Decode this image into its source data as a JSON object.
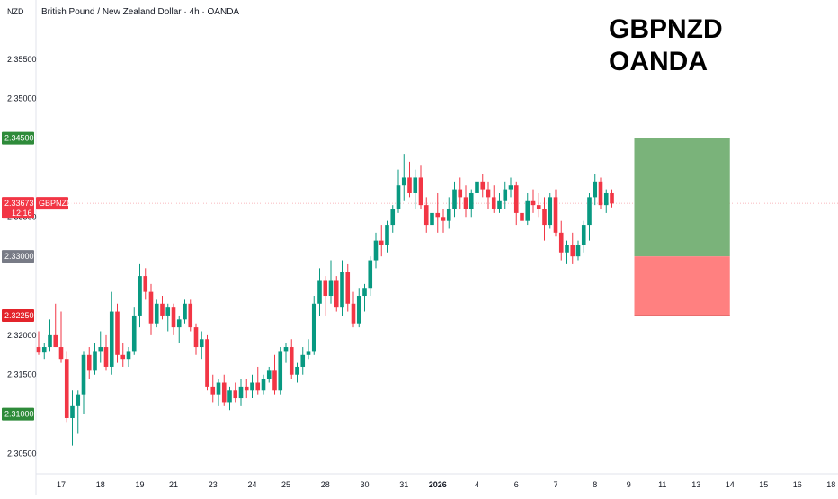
{
  "chart_data": {
    "type": "candlestick",
    "instrument": "British Pound / New Zealand Dollar · 4h · OANDA",
    "currency": "NZD",
    "symbol": "GBPNZD",
    "overlay_title": [
      "GBPNZD",
      "OANDA"
    ],
    "y_ticks": [
      "2.35500",
      "2.35000",
      "2.33500",
      "2.32000",
      "2.31500",
      "2.30500"
    ],
    "y_tick_values": [
      2.355,
      2.35,
      2.335,
      2.32,
      2.315,
      2.305
    ],
    "ylim": [
      2.303,
      2.36
    ],
    "price_tags": [
      {
        "label": "2.34500",
        "value": 2.345,
        "color": "#2e8b3a"
      },
      {
        "label": "2.33000",
        "value": 2.33,
        "color": "#787b86"
      },
      {
        "label": "2.32250",
        "value": 2.3225,
        "color": "#e3242b"
      },
      {
        "label": "2.31000",
        "value": 2.31,
        "color": "#2e8b3a"
      }
    ],
    "current_price": {
      "label": "2.33673",
      "value": 2.33673,
      "countdown": "12:16",
      "color": "#f23645"
    },
    "x_labels": [
      {
        "label": "17",
        "index": 4
      },
      {
        "label": "18",
        "index": 11
      },
      {
        "label": "19",
        "index": 18
      },
      {
        "label": "21",
        "index": 24
      },
      {
        "label": "23",
        "index": 31
      },
      {
        "label": "24",
        "index": 38
      },
      {
        "label": "25",
        "index": 44
      },
      {
        "label": "28",
        "index": 51
      },
      {
        "label": "30",
        "index": 58
      },
      {
        "label": "31",
        "index": 65
      },
      {
        "label": "2026",
        "index": 71,
        "bold": true
      },
      {
        "label": "4",
        "index": 78
      },
      {
        "label": "6",
        "index": 85
      },
      {
        "label": "7",
        "index": 92
      },
      {
        "label": "8",
        "index": 99
      },
      {
        "label": "9",
        "index": 105
      },
      {
        "label": "11",
        "index": 111
      },
      {
        "label": "13",
        "index": 117
      },
      {
        "label": "14",
        "index": 123
      },
      {
        "label": "15",
        "index": 129
      },
      {
        "label": "16",
        "index": 135
      },
      {
        "label": "18",
        "index": 141
      }
    ],
    "position": {
      "entry": 2.33,
      "target": 2.345,
      "stop": 2.3225,
      "start_index": 106,
      "end_index": 123,
      "profit_color": "#7ab37a",
      "loss_color": "#ff8080"
    },
    "candles": [
      [
        2.3185,
        2.3205,
        2.3175,
        2.3178
      ],
      [
        2.3178,
        2.319,
        2.317,
        2.3185
      ],
      [
        2.3185,
        2.322,
        2.318,
        2.32
      ],
      [
        2.32,
        2.324,
        2.3185,
        2.3185
      ],
      [
        2.3185,
        2.323,
        2.3165,
        2.317
      ],
      [
        2.317,
        2.318,
        2.309,
        2.3095
      ],
      [
        2.3095,
        2.313,
        2.306,
        2.311
      ],
      [
        2.311,
        2.313,
        2.3075,
        2.3125
      ],
      [
        2.3125,
        2.318,
        2.31,
        2.3175
      ],
      [
        2.3175,
        2.3185,
        2.3145,
        2.3155
      ],
      [
        2.3155,
        2.319,
        2.315,
        2.318
      ],
      [
        2.318,
        2.3205,
        2.3165,
        2.3185
      ],
      [
        2.3185,
        2.32,
        2.3155,
        2.316
      ],
      [
        2.316,
        2.3255,
        2.315,
        2.323
      ],
      [
        2.323,
        2.324,
        2.3165,
        2.3175
      ],
      [
        2.3175,
        2.319,
        2.316,
        2.317
      ],
      [
        2.317,
        2.3185,
        2.316,
        2.318
      ],
      [
        2.318,
        2.3235,
        2.3175,
        2.3225
      ],
      [
        2.3225,
        2.329,
        2.321,
        2.3275
      ],
      [
        2.3275,
        2.3285,
        2.3245,
        2.3255
      ],
      [
        2.3255,
        2.3265,
        2.32,
        2.3215
      ],
      [
        2.3215,
        2.3245,
        2.321,
        2.324
      ],
      [
        2.324,
        2.325,
        2.322,
        2.3225
      ],
      [
        2.3225,
        2.324,
        2.3205,
        2.3235
      ],
      [
        2.3235,
        2.324,
        2.32,
        2.321
      ],
      [
        2.321,
        2.3225,
        2.319,
        2.322
      ],
      [
        2.322,
        2.3245,
        2.3215,
        2.324
      ],
      [
        2.324,
        2.3245,
        2.3205,
        2.321
      ],
      [
        2.321,
        2.3215,
        2.3175,
        2.3185
      ],
      [
        2.3185,
        2.3205,
        2.317,
        2.3195
      ],
      [
        2.3195,
        2.32,
        2.313,
        2.3135
      ],
      [
        2.3135,
        2.315,
        2.3115,
        2.3125
      ],
      [
        2.3125,
        2.3145,
        2.311,
        2.314
      ],
      [
        2.314,
        2.315,
        2.311,
        2.3115
      ],
      [
        2.3115,
        2.3135,
        2.3105,
        2.313
      ],
      [
        2.313,
        2.314,
        2.3115,
        2.312
      ],
      [
        2.312,
        2.3145,
        2.311,
        2.3135
      ],
      [
        2.3135,
        2.3145,
        2.312,
        2.313
      ],
      [
        2.313,
        2.315,
        2.312,
        2.314
      ],
      [
        2.314,
        2.316,
        2.3125,
        2.313
      ],
      [
        2.313,
        2.315,
        2.3125,
        2.3145
      ],
      [
        2.3145,
        2.316,
        2.314,
        2.3155
      ],
      [
        2.3155,
        2.3175,
        2.3125,
        2.313
      ],
      [
        2.313,
        2.3185,
        2.3125,
        2.318
      ],
      [
        2.318,
        2.319,
        2.3165,
        2.3185
      ],
      [
        2.3185,
        2.3195,
        2.3145,
        2.315
      ],
      [
        2.315,
        2.3165,
        2.314,
        2.316
      ],
      [
        2.316,
        2.3185,
        2.315,
        2.3175
      ],
      [
        2.3175,
        2.3195,
        2.317,
        2.318
      ],
      [
        2.318,
        2.325,
        2.3175,
        2.324
      ],
      [
        2.324,
        2.3285,
        2.3225,
        2.327
      ],
      [
        2.327,
        2.3275,
        2.3225,
        2.325
      ],
      [
        2.325,
        2.3295,
        2.324,
        2.327
      ],
      [
        2.327,
        2.3275,
        2.323,
        2.3235
      ],
      [
        2.3235,
        2.3295,
        2.3225,
        2.328
      ],
      [
        2.328,
        2.329,
        2.323,
        2.324
      ],
      [
        2.324,
        2.3255,
        2.321,
        2.3215
      ],
      [
        2.3215,
        2.326,
        2.321,
        2.325
      ],
      [
        2.325,
        2.3265,
        2.323,
        2.326
      ],
      [
        2.326,
        2.33,
        2.325,
        2.3295
      ],
      [
        2.3295,
        2.333,
        2.3285,
        2.332
      ],
      [
        2.332,
        2.334,
        2.33,
        2.3315
      ],
      [
        2.3315,
        2.3345,
        2.3305,
        2.334
      ],
      [
        2.334,
        2.3365,
        2.333,
        2.336
      ],
      [
        2.336,
        2.341,
        2.3355,
        2.339
      ],
      [
        2.339,
        2.343,
        2.337,
        2.34
      ],
      [
        2.34,
        2.342,
        2.3375,
        2.338
      ],
      [
        2.338,
        2.341,
        2.336,
        2.34
      ],
      [
        2.34,
        2.3415,
        2.336,
        2.3365
      ],
      [
        2.3365,
        2.3375,
        2.333,
        2.334
      ],
      [
        2.334,
        2.3365,
        2.329,
        2.3355
      ],
      [
        2.3355,
        2.338,
        2.333,
        2.335
      ],
      [
        2.335,
        2.336,
        2.333,
        2.3345
      ],
      [
        2.3345,
        2.3375,
        2.3335,
        2.336
      ],
      [
        2.336,
        2.3395,
        2.335,
        2.3385
      ],
      [
        2.3385,
        2.34,
        2.336,
        2.3375
      ],
      [
        2.3375,
        2.339,
        2.335,
        2.336
      ],
      [
        2.336,
        2.3385,
        2.335,
        2.338
      ],
      [
        2.338,
        2.341,
        2.337,
        2.3395
      ],
      [
        2.3395,
        2.3405,
        2.3375,
        2.3385
      ],
      [
        2.3385,
        2.3395,
        2.336,
        2.3375
      ],
      [
        2.3375,
        2.339,
        2.3355,
        2.336
      ],
      [
        2.336,
        2.338,
        2.3355,
        2.337
      ],
      [
        2.337,
        2.3395,
        2.336,
        2.3385
      ],
      [
        2.3385,
        2.34,
        2.3375,
        2.339
      ],
      [
        2.339,
        2.3395,
        2.334,
        2.3355
      ],
      [
        2.3355,
        2.3375,
        2.333,
        2.3345
      ],
      [
        2.3345,
        2.338,
        2.334,
        2.337
      ],
      [
        2.337,
        2.3385,
        2.3355,
        2.3365
      ],
      [
        2.3365,
        2.338,
        2.335,
        2.336
      ],
      [
        2.336,
        2.3375,
        2.332,
        2.334
      ],
      [
        2.334,
        2.338,
        2.3335,
        2.3375
      ],
      [
        2.3375,
        2.3385,
        2.3325,
        2.333
      ],
      [
        2.333,
        2.3345,
        2.3295,
        2.3305
      ],
      [
        2.3305,
        2.332,
        2.329,
        2.3315
      ],
      [
        2.3315,
        2.333,
        2.329,
        2.33
      ],
      [
        2.33,
        2.332,
        2.3295,
        2.3315
      ],
      [
        2.3315,
        2.3345,
        2.3305,
        2.334
      ],
      [
        2.334,
        2.338,
        2.332,
        2.3375
      ],
      [
        2.3375,
        2.3405,
        2.3365,
        2.3395
      ],
      [
        2.3395,
        2.34,
        2.336,
        2.3365
      ],
      [
        2.3365,
        2.3385,
        2.3355,
        2.338
      ],
      [
        2.338,
        2.3385,
        2.3362,
        2.3367
      ]
    ]
  }
}
